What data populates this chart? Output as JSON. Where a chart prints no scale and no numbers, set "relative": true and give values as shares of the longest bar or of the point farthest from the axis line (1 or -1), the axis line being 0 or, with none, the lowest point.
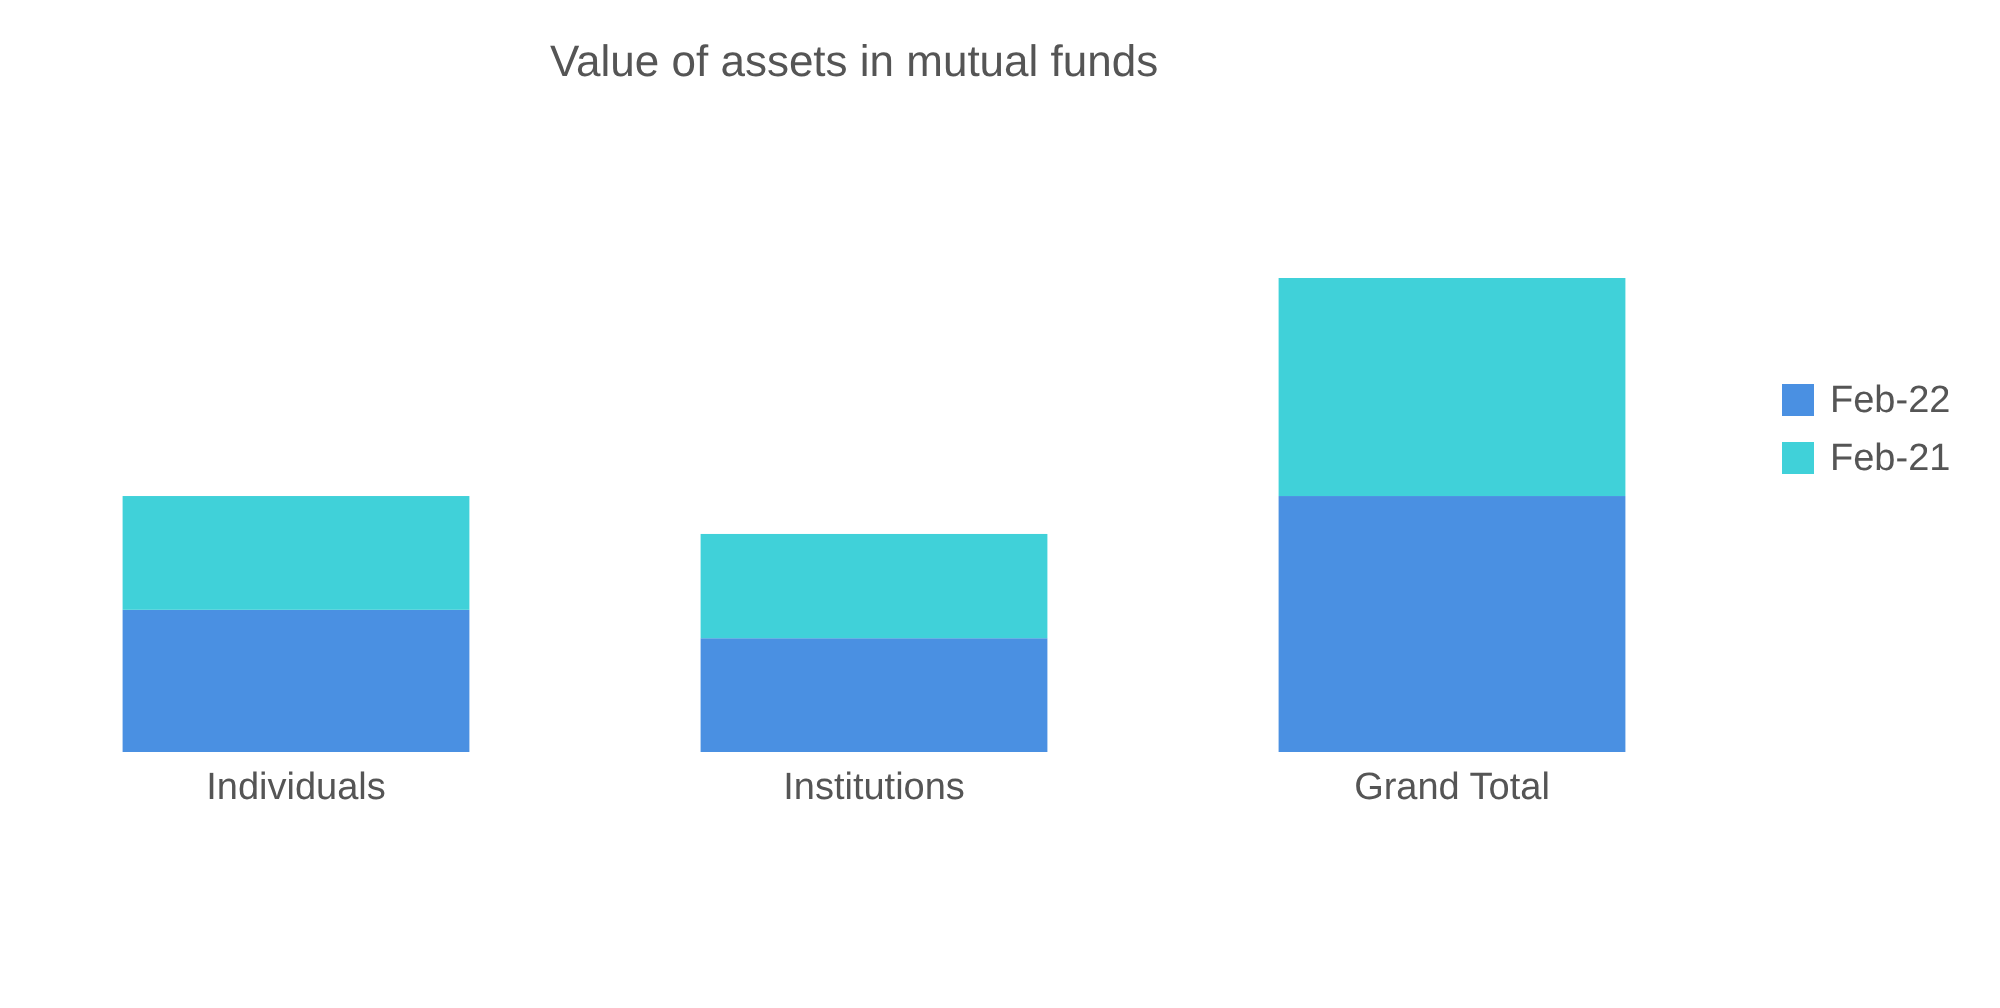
{
  "chart_data": {
    "type": "bar",
    "title": "Value of assets in mutual funds",
    "categories": [
      "Individuals",
      "Institutions",
      "Grand Total"
    ],
    "stacked": true,
    "relative": true,
    "legend": "right",
    "series": [
      {
        "name": "Feb-22",
        "color": "#4a90e2",
        "values": [
          0.3,
          0.24,
          0.54
        ]
      },
      {
        "name": "Feb-21",
        "color": "#40d1d9",
        "values": [
          0.24,
          0.22,
          0.46
        ]
      }
    ]
  }
}
